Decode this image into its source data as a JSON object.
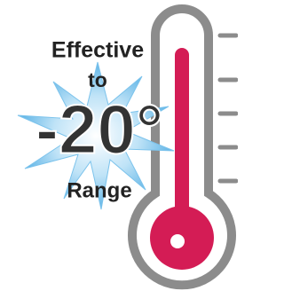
{
  "badge": {
    "line1": "Effective",
    "line2": "to",
    "temperature": "-20°",
    "line3": "Range"
  }
}
